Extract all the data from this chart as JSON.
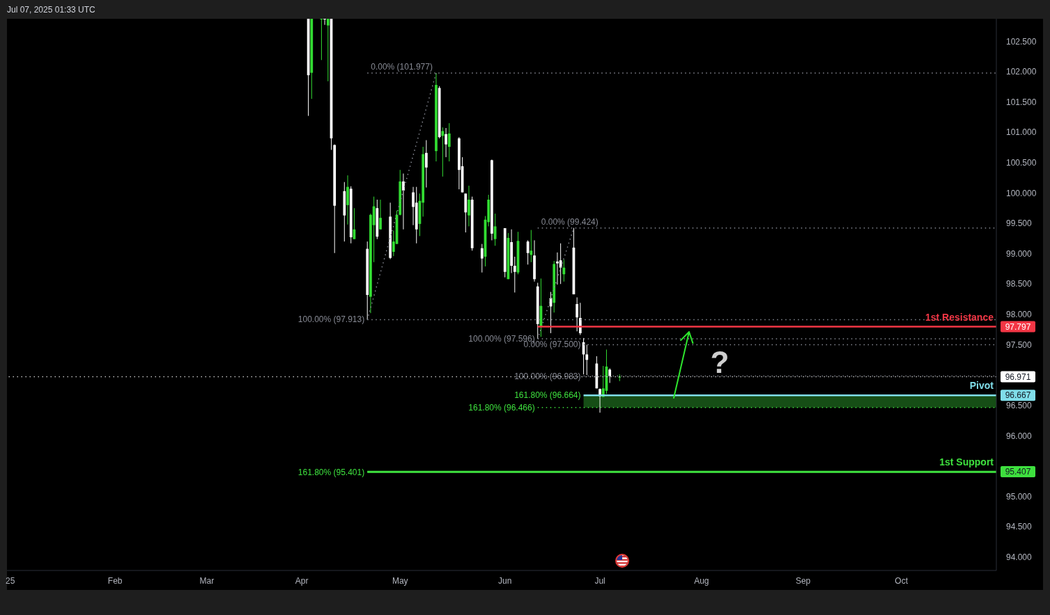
{
  "chart_data": {
    "type": "candlestick",
    "annotations": [
      "Jul 07, 2025 01:33 UTC",
      "?"
    ],
    "x": [
      "2025-04-03",
      "2025-04-04",
      "2025-04-07",
      "2025-04-08",
      "2025-04-09",
      "2025-04-10",
      "2025-04-11",
      "2025-04-14",
      "2025-04-15",
      "2025-04-16",
      "2025-04-17",
      "2025-04-21",
      "2025-04-22",
      "2025-04-23",
      "2025-04-24",
      "2025-04-25",
      "2025-04-28",
      "2025-04-29",
      "2025-04-30",
      "2025-05-01",
      "2025-05-02",
      "2025-05-05",
      "2025-05-06",
      "2025-05-07",
      "2025-05-08",
      "2025-05-09",
      "2025-05-12",
      "2025-05-13",
      "2025-05-14",
      "2025-05-15",
      "2025-05-16",
      "2025-05-19",
      "2025-05-20",
      "2025-05-21",
      "2025-05-22",
      "2025-05-23",
      "2025-05-26",
      "2025-05-27",
      "2025-05-28",
      "2025-05-29",
      "2025-05-30",
      "2025-06-02",
      "2025-06-03",
      "2025-06-04",
      "2025-06-05",
      "2025-06-06",
      "2025-06-09",
      "2025-06-10",
      "2025-06-11",
      "2025-06-12",
      "2025-06-13",
      "2025-06-16",
      "2025-06-17",
      "2025-06-18",
      "2025-06-19",
      "2025-06-20",
      "2025-06-23",
      "2025-06-24",
      "2025-06-25",
      "2025-06-26",
      "2025-06-27",
      "2025-06-30",
      "2025-07-01",
      "2025-07-02",
      "2025-07-03",
      "2025-07-04",
      "2025-07-07"
    ],
    "ohlc": [
      [
        102.87,
        102.87,
        101.27,
        101.94
      ],
      [
        101.98,
        102.87,
        101.55,
        102.87
      ],
      [
        102.87,
        102.87,
        102.19,
        102.87
      ],
      [
        102.87,
        102.87,
        102.77,
        102.87
      ],
      [
        102.76,
        102.87,
        101.84,
        102.87
      ],
      [
        102.87,
        102.87,
        100.71,
        100.9
      ],
      [
        100.79,
        100.8,
        99.01,
        99.79
      ],
      [
        100.03,
        100.18,
        99.2,
        99.63
      ],
      [
        99.8,
        100.29,
        99.48,
        100.1
      ],
      [
        100.07,
        100.11,
        99.17,
        99.27
      ],
      [
        99.24,
        99.75,
        99.24,
        99.4
      ],
      [
        99.08,
        99.2,
        97.913,
        98.32
      ],
      [
        98.29,
        99.66,
        98.02,
        99.64
      ],
      [
        99.47,
        99.94,
        98.86,
        99.78
      ],
      [
        99.75,
        99.89,
        99.24,
        99.28
      ],
      [
        99.4,
        99.89,
        99.4,
        99.59
      ],
      [
        99.61,
        99.84,
        98.91,
        98.93
      ],
      [
        99.03,
        99.38,
        98.96,
        99.2
      ],
      [
        99.16,
        99.71,
        99.16,
        99.64
      ],
      [
        99.64,
        100.38,
        99.63,
        100.19
      ],
      [
        100.19,
        100.32,
        99.4,
        100.04
      ],
      [
        100.01,
        100.1,
        99.47,
        99.77
      ],
      [
        99.84,
        100.1,
        99.17,
        99.4
      ],
      [
        99.49,
        99.99,
        99.29,
        99.87
      ],
      [
        99.84,
        100.76,
        99.61,
        100.64
      ],
      [
        100.66,
        100.87,
        100.09,
        100.42
      ],
      [
        100.69,
        101.977,
        100.52,
        101.78
      ],
      [
        101.73,
        101.76,
        100.9,
        100.92
      ],
      [
        100.94,
        101.08,
        100.27,
        101.02
      ],
      [
        100.97,
        101.07,
        100.59,
        100.8
      ],
      [
        100.76,
        101.15,
        100.52,
        100.98
      ],
      [
        100.9,
        100.92,
        100.06,
        100.38
      ],
      [
        100.44,
        100.59,
        100.01,
        100.01
      ],
      [
        99.99,
        99.99,
        99.35,
        99.68
      ],
      [
        99.63,
        100.12,
        99.45,
        99.89
      ],
      [
        99.89,
        99.94,
        99.05,
        99.09
      ],
      [
        99.09,
        99.16,
        98.69,
        98.92
      ],
      [
        98.95,
        99.62,
        98.79,
        99.56
      ],
      [
        99.52,
        99.97,
        99.45,
        99.89
      ],
      [
        100.54,
        100.55,
        99.22,
        99.33
      ],
      [
        99.24,
        99.66,
        99.13,
        99.45
      ],
      [
        99.42,
        99.42,
        98.61,
        98.7
      ],
      [
        98.58,
        99.34,
        98.58,
        99.26
      ],
      [
        99.19,
        99.4,
        98.68,
        98.8
      ],
      [
        98.8,
        98.95,
        98.36,
        98.7
      ],
      [
        98.69,
        99.36,
        98.66,
        99.21
      ],
      [
        99.2,
        99.22,
        98.82,
        99.01
      ],
      [
        98.98,
        99.39,
        98.86,
        99.05
      ],
      [
        98.97,
        99.22,
        98.54,
        98.58
      ],
      [
        98.46,
        98.52,
        97.596,
        97.84
      ],
      [
        97.8,
        98.59,
        97.63,
        98.14
      ],
      [
        98.27,
        98.37,
        97.69,
        98.13
      ],
      [
        98.19,
        98.88,
        98.03,
        98.83
      ],
      [
        98.87,
        99.02,
        98.49,
        98.84
      ],
      [
        98.89,
        99.17,
        98.5,
        98.77
      ],
      [
        98.66,
        98.9,
        98.54,
        98.77
      ],
      [
        99.1,
        99.424,
        98.33,
        98.33
      ],
      [
        98.17,
        98.28,
        97.72,
        97.95
      ],
      [
        97.94,
        98.19,
        97.66,
        97.69
      ],
      [
        97.54,
        97.61,
        97.01,
        97.34
      ],
      [
        97.34,
        97.5,
        97.0,
        97.25
      ],
      [
        97.19,
        97.31,
        96.78,
        96.78
      ],
      [
        96.77,
        96.78,
        96.38,
        96.65
      ],
      [
        96.64,
        97.15,
        96.64,
        96.78
      ],
      [
        96.74,
        97.42,
        96.69,
        97.14
      ],
      [
        97.09,
        97.11,
        96.87,
        96.98
      ],
      [
        96.96,
        97.01,
        96.9,
        96.971
      ]
    ],
    "colors": [
      "#ffffff",
      "#32dc32",
      "#32dc32",
      "#ffffff",
      "#32dc32",
      "#ffffff",
      "#ffffff",
      "#ffffff",
      "#32dc32",
      "#ffffff",
      "#32dc32",
      "#ffffff",
      "#32dc32",
      "#32dc32",
      "#ffffff",
      "#32dc32",
      "#ffffff",
      "#32dc32",
      "#32dc32",
      "#32dc32",
      "#ffffff",
      "#ffffff",
      "#ffffff",
      "#32dc32",
      "#32dc32",
      "#ffffff",
      "#32dc32",
      "#ffffff",
      "#32dc32",
      "#ffffff",
      "#32dc32",
      "#ffffff",
      "#ffffff",
      "#ffffff",
      "#32dc32",
      "#ffffff",
      "#ffffff",
      "#32dc32",
      "#32dc32",
      "#ffffff",
      "#32dc32",
      "#ffffff",
      "#32dc32",
      "#ffffff",
      "#ffffff",
      "#32dc32",
      "#ffffff",
      "#32dc32",
      "#ffffff",
      "#ffffff",
      "#32dc32",
      "#ffffff",
      "#32dc32",
      "#ffffff",
      "#ffffff",
      "#32dc32",
      "#ffffff",
      "#ffffff",
      "#ffffff",
      "#ffffff",
      "#ffffff",
      "#ffffff",
      "#ffffff",
      "#32dc32",
      "#32dc32",
      "#ffffff",
      "#32dc32"
    ],
    "series": [
      {
        "type": "line",
        "x": [
          "2025-04-21",
          "2025-05-12"
        ],
        "values": [
          97.913,
          101.977
        ],
        "color": "#868993",
        "line_style": "dotted"
      },
      {
        "type": "line",
        "x": [
          "2025-06-12",
          "2025-06-23"
        ],
        "values": [
          97.596,
          99.424
        ],
        "color": "#868993",
        "line_style": "dotted"
      },
      {
        "type": "line",
        "name": "0.00% (101.977)",
        "x": [
          "2025-04-21",
          "2025-10-30"
        ],
        "values": [
          101.977,
          101.977
        ],
        "color": "#868993",
        "line_style": "dotted"
      },
      {
        "type": "line",
        "name": "100.00% (97.913)",
        "x": [
          "2025-04-21",
          "2025-10-30"
        ],
        "values": [
          97.913,
          97.913
        ],
        "color": "#868993",
        "line_style": "dotted"
      },
      {
        "type": "line",
        "name": "0.00% (99.424)",
        "x": [
          "2025-06-12",
          "2025-10-30"
        ],
        "values": [
          99.424,
          99.424
        ],
        "color": "#868993",
        "line_style": "dotted"
      },
      {
        "type": "line",
        "name": "100.00% (97.596)",
        "x": [
          "2025-06-12",
          "2025-10-30"
        ],
        "values": [
          97.596,
          97.596
        ],
        "color": "#868993",
        "line_style": "dotted"
      },
      {
        "type": "line",
        "name": "0.00% (97.500)",
        "x": [
          "2025-06-26",
          "2025-10-30"
        ],
        "values": [
          97.5,
          97.5
        ],
        "color": "#868993",
        "line_style": "dotted"
      },
      {
        "type": "line",
        "name": "100.00% (96.983)",
        "x": [
          "2025-06-26",
          "2025-10-30"
        ],
        "values": [
          96.983,
          96.983
        ],
        "color": "#868993",
        "line_style": "dotted"
      },
      {
        "type": "line",
        "name": "161.80% (96.664)",
        "x": [
          "2025-06-26",
          "2025-10-30"
        ],
        "values": [
          null,
          null
        ],
        "lower": [
          96.466,
          96.466
        ],
        "upper": [
          96.664,
          96.664
        ],
        "color": "#3ee03e",
        "line_style": "solid"
      },
      {
        "type": "line",
        "name": "161.80% (96.466)",
        "x": [
          "2025-06-12",
          "2025-10-30"
        ],
        "values": [
          96.466,
          96.466
        ],
        "color": "#3ee03e",
        "line_style": "dotted"
      },
      {
        "type": "line",
        "name": "161.80% (95.401)",
        "x": [
          "2025-04-21",
          "2025-10-30"
        ],
        "values": [
          95.401,
          95.401
        ],
        "color": "#3ee03e",
        "line_style": "solid"
      },
      {
        "type": "line",
        "name": "1st Resistance",
        "x": [
          "2025-06-12",
          "2025-10-30"
        ],
        "values": [
          97.797,
          97.797
        ],
        "value_labels": [
          null,
          "97.797"
        ],
        "color": "#f23645",
        "line_style": "solid"
      },
      {
        "type": "line",
        "name": "Pivot",
        "x": [
          "2025-06-26",
          "2025-10-30"
        ],
        "values": [
          96.667,
          96.667
        ],
        "value_labels": [
          null,
          "96.667"
        ],
        "color": "#80deea",
        "line_style": "solid"
      },
      {
        "type": "line",
        "name": "1st Support",
        "x": [
          "2025-04-21",
          "2025-10-30"
        ],
        "values": [
          95.407,
          95.407
        ],
        "value_labels": [
          null,
          "95.407"
        ],
        "color": "#3ee03e",
        "line_style": "solid"
      }
    ],
    "ref_lines": [
      {
        "axis": "y",
        "value": 96.971,
        "label": "96.971",
        "color": "#ffffff",
        "line_style": "dotted"
      }
    ],
    "xlim": [
      "2025-01-01",
      "2025-10-30"
    ],
    "xticks": [
      {
        "value": "2025-01-02",
        "label": "25"
      },
      {
        "value": "2025-02-03",
        "label": "Feb"
      },
      {
        "value": "2025-03-03",
        "label": "Mar"
      },
      {
        "value": "2025-04-01",
        "label": "Apr"
      },
      {
        "value": "2025-05-01",
        "label": "May"
      },
      {
        "value": "2025-06-02",
        "label": "Jun"
      },
      {
        "value": "2025-07-01",
        "label": "Jul"
      },
      {
        "value": "2025-08-01",
        "label": "Aug"
      },
      {
        "value": "2025-09-01",
        "label": "Sep"
      },
      {
        "value": "2025-10-01",
        "label": "Oct"
      }
    ],
    "ylim": [
      93.78,
      102.87
    ],
    "yticks": [
      {
        "value": 94,
        "label": "94.000"
      },
      {
        "value": 94.5,
        "label": "94.500"
      },
      {
        "value": 95,
        "label": "95.000"
      },
      {
        "value": 96,
        "label": "96.000"
      },
      {
        "value": 96.5,
        "label": "96.500"
      },
      {
        "value": 97.5,
        "label": "97.500"
      },
      {
        "value": 98,
        "label": "98.000"
      },
      {
        "value": 98.5,
        "label": "98.500"
      },
      {
        "value": 99,
        "label": "99.000"
      },
      {
        "value": 99.5,
        "label": "99.500"
      },
      {
        "value": 100,
        "label": "100.000"
      },
      {
        "value": 100.5,
        "label": "100.500"
      },
      {
        "value": 101,
        "label": "101.000"
      },
      {
        "value": 101.5,
        "label": "101.500"
      },
      {
        "value": 102,
        "label": "102.000"
      },
      {
        "value": 102.5,
        "label": "102.500"
      }
    ]
  }
}
